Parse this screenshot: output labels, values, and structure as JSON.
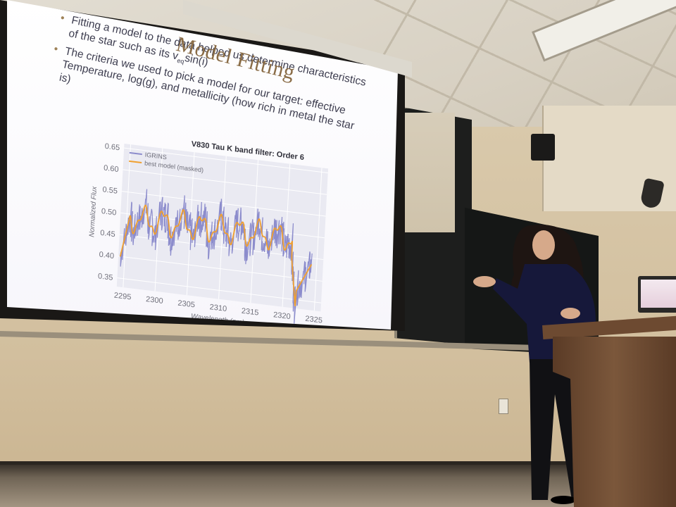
{
  "slide": {
    "title": "Model Fitting",
    "bullets": [
      {
        "line1": "Fitting a model to the data helped us determine characteristics",
        "line2_pre": "of the star such as its v",
        "line2_sub": "eq",
        "line2_post": "sin(i)"
      },
      {
        "line1": "The criteria we used to pick a model for our target: effective",
        "line2": "Temperature, log(g), and metallicity (how rich in metal the star",
        "line3": "is)"
      }
    ]
  },
  "chart_data": {
    "type": "line",
    "title": "V830 Tau K band filter: Order 6",
    "xlabel": "Wavelength (nm)",
    "ylabel": "Normalized Flux",
    "xlim": [
      2294,
      2326
    ],
    "ylim": [
      0.33,
      0.66
    ],
    "xticks": [
      2295,
      2300,
      2305,
      2310,
      2315,
      2320,
      2325
    ],
    "yticks": [
      0.35,
      0.4,
      0.45,
      0.5,
      0.55,
      0.6,
      0.65
    ],
    "legend_position": "top-left",
    "series": [
      {
        "name": "IGRINS",
        "color": "#8c8ccc",
        "style": "noisy"
      },
      {
        "name": "best model (masked)",
        "color": "#f0a030",
        "style": "smooth"
      }
    ]
  },
  "scene": {
    "colors": {
      "wall": "#d2bf9e",
      "screen": "#f7f6fb",
      "title_gold": "#8a6c46",
      "speaker_top": "#16183a",
      "podium": "#6d4a31"
    }
  }
}
